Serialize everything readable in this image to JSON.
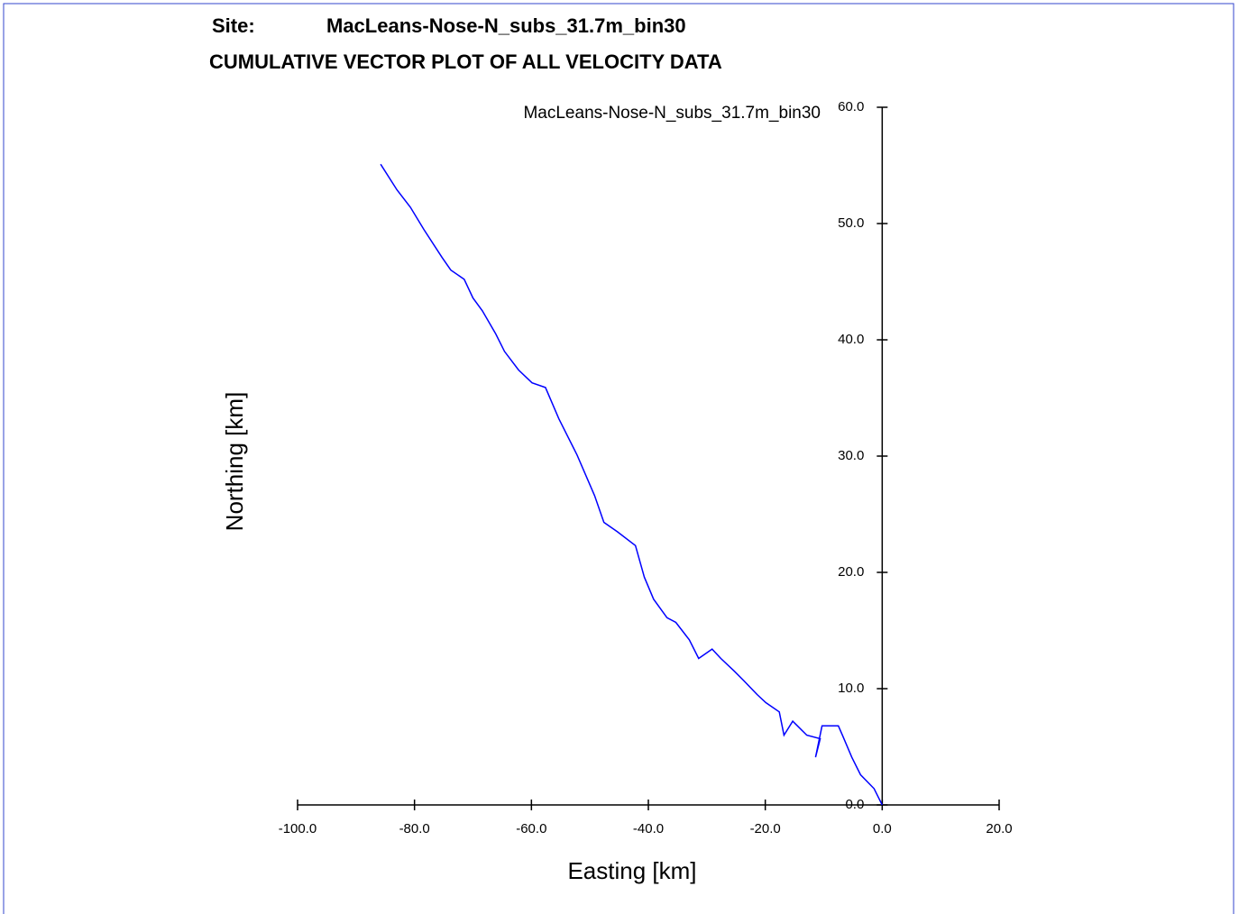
{
  "chart_data": {
    "type": "line",
    "site_label": "Site:",
    "site_name": "MacLeans-Nose-N_subs_31.7m_bin30",
    "title": "CUMULATIVE VECTOR PLOT OF ALL VELOCITY DATA",
    "x_label": "Easting [km]",
    "y_label": "Northing [km]",
    "x": [
      0,
      -1.4,
      -3.7,
      -5.2,
      -6.8,
      -7.5,
      -10.3,
      -11.4,
      -10.6,
      -12.9,
      -15.3,
      -16.8,
      -17.6,
      -19.9,
      -21.4,
      -23.7,
      -25.3,
      -27.6,
      -29.1,
      -31.4,
      -33.0,
      -35.3,
      -36.8,
      -39.1,
      -40.7,
      -42.2,
      -45.3,
      -47.6,
      -49.2,
      -52.2,
      -55.3,
      -57.6,
      -59.9,
      -62.2,
      -64.6,
      -66.1,
      -68.4,
      -70.0,
      -71.5,
      -73.8,
      -75.3,
      -78.4,
      -80.7,
      -83.0,
      -85.8
    ],
    "series": [
      {
        "name": "MacLeans-Nose-N_subs_31.7m_bin30",
        "color": "#0000ff",
        "values": [
          0,
          1.4,
          2.6,
          4.1,
          6.0,
          6.8,
          6.8,
          4.1,
          5.7,
          6.0,
          7.2,
          6.0,
          8.0,
          8.8,
          9.5,
          10.7,
          11.5,
          12.6,
          13.4,
          12.6,
          14.2,
          15.7,
          16.1,
          17.7,
          19.6,
          22.3,
          23.5,
          24.3,
          26.6,
          30.1,
          33.2,
          35.9,
          36.3,
          37.4,
          39.0,
          40.5,
          42.5,
          43.6,
          45.2,
          46.0,
          47.1,
          49.5,
          51.4,
          52.9,
          55.1
        ]
      }
    ],
    "xlim": [
      -100,
      20
    ],
    "ylim": [
      0,
      60
    ],
    "xticks": [
      {
        "value": -100,
        "label": "-100.0"
      },
      {
        "value": -80,
        "label": "-80.0"
      },
      {
        "value": -60,
        "label": "-60.0"
      },
      {
        "value": -40,
        "label": "-40.0"
      },
      {
        "value": -20,
        "label": "-20.0"
      },
      {
        "value": 0,
        "label": "0.0"
      },
      {
        "value": 20,
        "label": "20.0"
      }
    ],
    "yticks": [
      {
        "value": 0,
        "label": "0.0"
      },
      {
        "value": 10,
        "label": "10.0"
      },
      {
        "value": 20,
        "label": "20.0"
      },
      {
        "value": 30,
        "label": "30.0"
      },
      {
        "value": 40,
        "label": "40.0"
      },
      {
        "value": 50,
        "label": "50.0"
      },
      {
        "value": 60,
        "label": "60.0"
      }
    ]
  }
}
